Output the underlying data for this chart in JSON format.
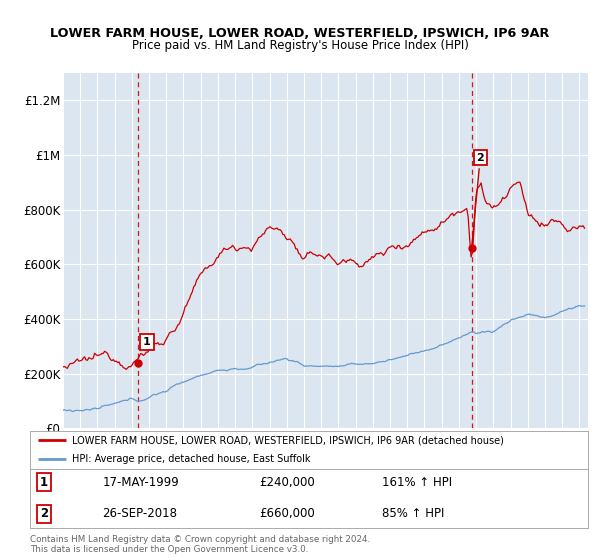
{
  "title1": "LOWER FARM HOUSE, LOWER ROAD, WESTERFIELD, IPSWICH, IP6 9AR",
  "title2": "Price paid vs. HM Land Registry's House Price Index (HPI)",
  "ylabel_ticks": [
    "£0",
    "£200K",
    "£400K",
    "£600K",
    "£800K",
    "£1M",
    "£1.2M"
  ],
  "ytick_values": [
    0,
    200000,
    400000,
    600000,
    800000,
    1000000,
    1200000
  ],
  "ylim": [
    0,
    1300000
  ],
  "xlim_start": 1995.0,
  "xlim_end": 2025.5,
  "legend_line1": "LOWER FARM HOUSE, LOWER ROAD, WESTERFIELD, IPSWICH, IP6 9AR (detached house)",
  "legend_line2": "HPI: Average price, detached house, East Suffolk",
  "point1_date": "17-MAY-1999",
  "point1_price": "£240,000",
  "point1_hpi": "161% ↑ HPI",
  "point1_x": 1999.38,
  "point1_y": 240000,
  "point2_date": "26-SEP-2018",
  "point2_price": "£660,000",
  "point2_hpi": "85% ↑ HPI",
  "point2_x": 2018.74,
  "point2_y": 660000,
  "footer": "Contains HM Land Registry data © Crown copyright and database right 2024.\nThis data is licensed under the Open Government Licence v3.0.",
  "red_color": "#cc0000",
  "blue_color": "#6699cc",
  "bg_color": "#dce6f1",
  "white": "#ffffff"
}
